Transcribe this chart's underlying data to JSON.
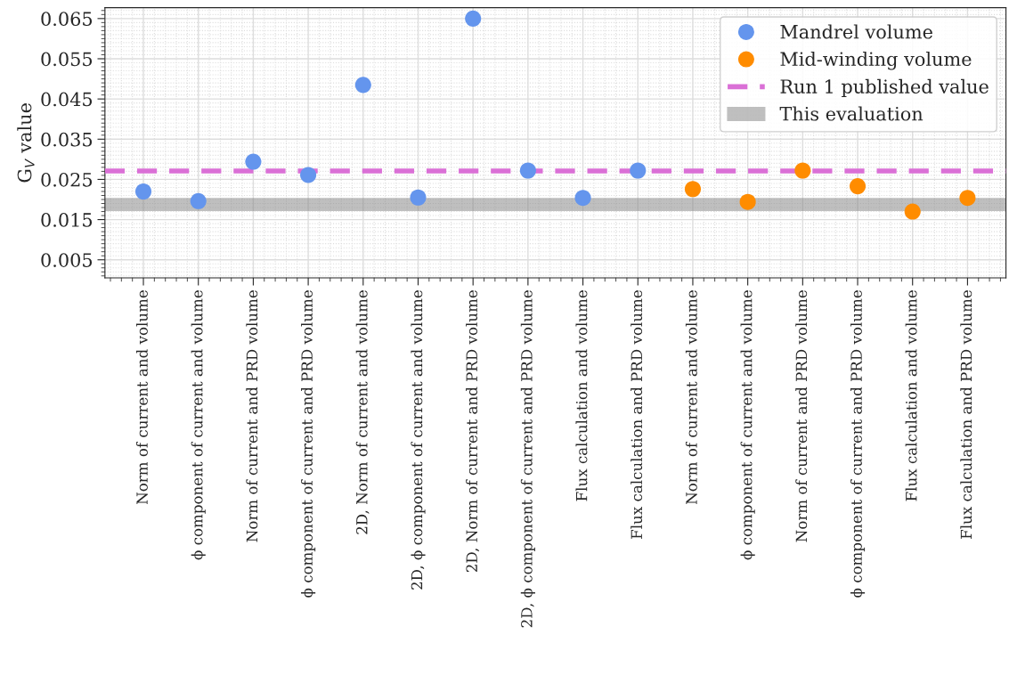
{
  "chart_data": {
    "type": "scatter",
    "ylabel": "G$_{V}$ value",
    "categories": [
      "Norm of current and volume",
      "ϕ component of current and volume",
      "Norm of current and PRD volume",
      "ϕ component of current and PRD volume",
      "2D, Norm of current and volume",
      "2D, ϕ component of current and volume",
      "2D, Norm of current and PRD volume",
      "2D, ϕ component of current and PRD volume",
      "Flux calculation and volume",
      "Flux calculation and PRD volume",
      "Norm of current and volume",
      "ϕ component of current and volume",
      "Norm of current and PRD volume",
      "ϕ component of current and PRD volume",
      "Flux calculation and volume",
      "Flux calculation and PRD volume"
    ],
    "series": [
      {
        "name": "Mandrel volume",
        "color": "#6495ed",
        "values": [
          0.022,
          0.0196,
          0.0294,
          0.0261,
          0.0485,
          0.0205,
          0.065,
          0.0272,
          0.0204,
          0.0272,
          null,
          null,
          null,
          null,
          null,
          null
        ]
      },
      {
        "name": "Mid-winding volume",
        "color": "#ff8c00",
        "values": [
          null,
          null,
          null,
          null,
          null,
          null,
          null,
          null,
          null,
          null,
          0.0226,
          0.0194,
          0.0272,
          0.0233,
          0.017,
          0.0204
        ]
      }
    ],
    "ref_lines": [
      {
        "axis": "y",
        "value": 0.0271,
        "label": "Run 1 published value",
        "color": "#da70d6",
        "line_style": "dashed"
      }
    ],
    "bands": [
      {
        "axis": "y",
        "from": 0.0171,
        "to": 0.0204,
        "label": "This evaluation",
        "color": "#808080"
      }
    ],
    "ylim": [
      0.0005,
      0.0677
    ],
    "yticks": [
      0.005,
      0.015,
      0.025,
      0.035,
      0.045,
      0.055,
      0.065
    ],
    "grid": true,
    "legend": "top right",
    "marker": "circle"
  }
}
